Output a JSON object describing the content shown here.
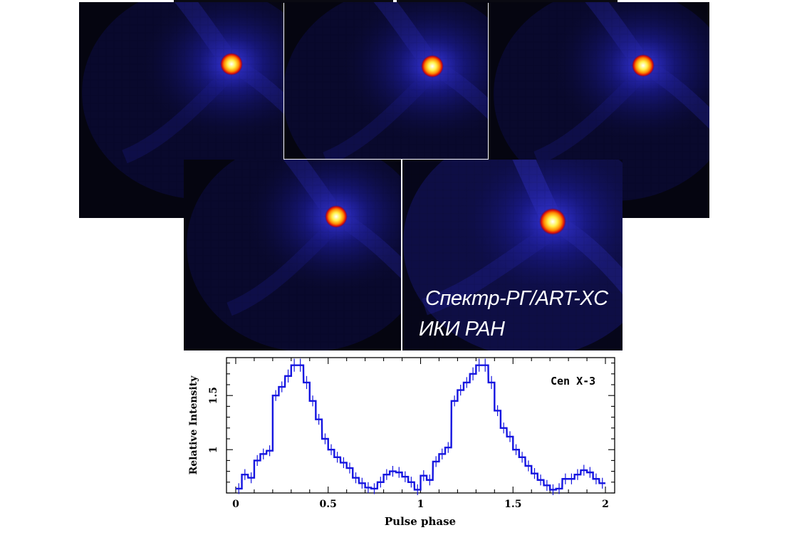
{
  "caption": {
    "line1": "Спектр-РГ/ART-XC",
    "line2": "ИКИ РАН"
  },
  "colors": {
    "image_background": "#050510",
    "blue_glow": "#2222c8",
    "core_white": "#ffffff",
    "core_yellow": "#ffee20",
    "core_red": "#e81010",
    "curve": "#1515e0"
  },
  "chart_data": {
    "type": "line",
    "style": "step",
    "title": "",
    "annotation": "Cen X-3",
    "xlabel": "Pulse phase",
    "ylabel": "Relative Intensity",
    "xlim": [
      -0.05,
      2.05
    ],
    "ylim": [
      0.6,
      1.85
    ],
    "xticks": [
      0,
      0.5,
      1,
      1.5,
      2
    ],
    "xtick_labels": [
      "0",
      "0.5",
      "1",
      "1.5",
      "2"
    ],
    "yticks": [
      1,
      1.5
    ],
    "ytick_labels": [
      "1",
      "1.5"
    ],
    "x": [
      0.0,
      0.033,
      0.067,
      0.1,
      0.133,
      0.167,
      0.2,
      0.233,
      0.267,
      0.3,
      0.333,
      0.367,
      0.4,
      0.433,
      0.467,
      0.5,
      0.533,
      0.567,
      0.6,
      0.633,
      0.667,
      0.7,
      0.733,
      0.767,
      0.8,
      0.833,
      0.867,
      0.9,
      0.933,
      0.967,
      1.0,
      1.033,
      1.067,
      1.1,
      1.133,
      1.167,
      1.2,
      1.233,
      1.267,
      1.3,
      1.333,
      1.367,
      1.4,
      1.433,
      1.467,
      1.5,
      1.533,
      1.567,
      1.6,
      1.633,
      1.667,
      1.7,
      1.733,
      1.767,
      1.8,
      1.833,
      1.867,
      1.9,
      1.933,
      1.967
    ],
    "values": [
      0.64,
      0.77,
      0.74,
      0.9,
      0.96,
      0.99,
      1.5,
      1.58,
      1.68,
      1.78,
      1.78,
      1.62,
      1.45,
      1.28,
      1.1,
      1.0,
      0.93,
      0.88,
      0.83,
      0.74,
      0.69,
      0.65,
      0.64,
      0.7,
      0.77,
      0.8,
      0.79,
      0.75,
      0.7,
      0.63,
      0.76,
      0.72,
      0.89,
      0.96,
      1.02,
      1.45,
      1.55,
      1.62,
      1.7,
      1.78,
      1.78,
      1.62,
      1.36,
      1.2,
      1.12,
      1.0,
      0.93,
      0.85,
      0.78,
      0.72,
      0.67,
      0.63,
      0.64,
      0.73,
      0.73,
      0.77,
      0.81,
      0.79,
      0.73,
      0.69
    ],
    "errors": [
      0.05,
      0.05,
      0.05,
      0.05,
      0.05,
      0.05,
      0.05,
      0.05,
      0.06,
      0.06,
      0.06,
      0.06,
      0.05,
      0.05,
      0.05,
      0.05,
      0.05,
      0.05,
      0.05,
      0.05,
      0.05,
      0.05,
      0.05,
      0.05,
      0.05,
      0.05,
      0.05,
      0.05,
      0.05,
      0.05,
      0.05,
      0.05,
      0.05,
      0.05,
      0.05,
      0.05,
      0.05,
      0.05,
      0.06,
      0.06,
      0.06,
      0.06,
      0.05,
      0.05,
      0.05,
      0.05,
      0.05,
      0.05,
      0.05,
      0.05,
      0.05,
      0.05,
      0.05,
      0.05,
      0.05,
      0.05,
      0.05,
      0.05,
      0.05,
      0.05
    ],
    "grid": false
  }
}
